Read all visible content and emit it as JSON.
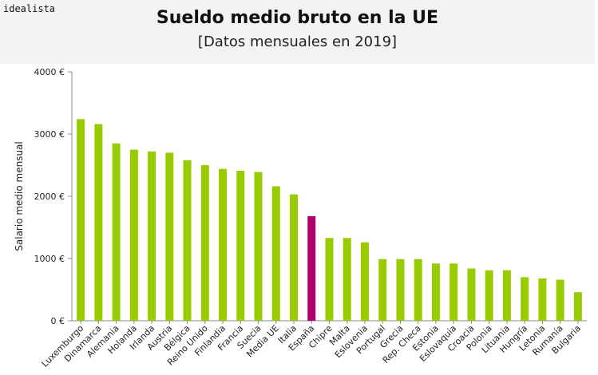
{
  "brand": "idealista",
  "chart_data": {
    "type": "bar",
    "title": "Sueldo medio bruto en la UE",
    "subtitle": "[Datos mensuales en 2019]",
    "ylabel": "Salario medio mensual",
    "ylim": [
      0,
      4000
    ],
    "yticks": [
      {
        "value": 0,
        "label": "0 €"
      },
      {
        "value": 1000,
        "label": "1000 €"
      },
      {
        "value": 2000,
        "label": "2000 €"
      },
      {
        "value": 3000,
        "label": "3000 €"
      },
      {
        "value": 4000,
        "label": "4000 €"
      }
    ],
    "grid": false,
    "bar_color": "#99cc00",
    "highlight_color": "#b0006e",
    "highlight_category": "España",
    "categories": [
      "Luxemburgo",
      "Dinamarca",
      "Alemania",
      "Holanda",
      "Irlanda",
      "Austria",
      "Bélgica",
      "Reino Unido",
      "Finlandia",
      "Francia",
      "Suecia",
      "Media UE",
      "Italia",
      "España",
      "Chipre",
      "Malta",
      "Eslovenia",
      "Portugal",
      "Grecia",
      "Rep. Checa",
      "Estonia",
      "Eslovaquia",
      "Croacia",
      "Polonia",
      "Lituania",
      "Hungría",
      "Letonia",
      "Rumanía",
      "Bulgaria"
    ],
    "values": [
      3240,
      3160,
      2850,
      2750,
      2720,
      2700,
      2580,
      2500,
      2440,
      2410,
      2390,
      2160,
      2030,
      1680,
      1330,
      1330,
      1260,
      990,
      990,
      990,
      920,
      920,
      840,
      810,
      810,
      700,
      680,
      660,
      460
    ]
  }
}
